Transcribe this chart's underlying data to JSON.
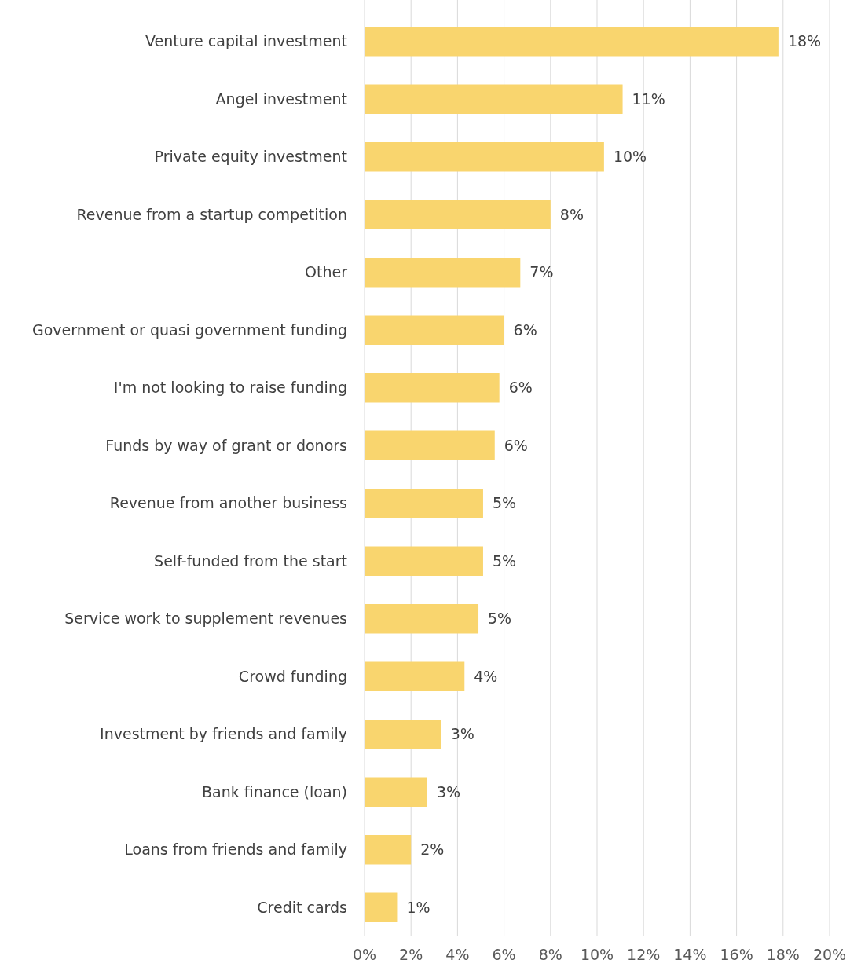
{
  "chart_data": {
    "type": "bar",
    "orientation": "horizontal",
    "categories": [
      "Venture capital investment",
      "Angel investment",
      "Private equity investment",
      "Revenue from a startup competition",
      "Other",
      "Government or quasi government funding",
      "I'm not looking to raise funding",
      "Funds by way of grant or donors",
      "Revenue from another business",
      "Self-funded from the start",
      "Service work to supplement revenues",
      "Crowd funding",
      "Investment by friends and family",
      "Bank finance (loan)",
      "Loans from friends and family",
      "Credit cards"
    ],
    "values": [
      17.8,
      11.1,
      10.3,
      8.0,
      6.7,
      6.0,
      5.8,
      5.6,
      5.1,
      5.1,
      4.9,
      4.3,
      3.3,
      2.7,
      2.0,
      1.4
    ],
    "value_labels": [
      "18%",
      "11%",
      "10%",
      "8%",
      "7%",
      "6%",
      "6%",
      "6%",
      "5%",
      "5%",
      "5%",
      "4%",
      "3%",
      "3%",
      "2%",
      "1%"
    ],
    "color": "#f9d56e",
    "xlim": [
      0,
      20
    ],
    "xticks": [
      {
        "value": 0,
        "label": "0%"
      },
      {
        "value": 2,
        "label": "2%"
      },
      {
        "value": 4,
        "label": "4%"
      },
      {
        "value": 6,
        "label": "6%"
      },
      {
        "value": 8,
        "label": "8%"
      },
      {
        "value": 10,
        "label": "10%"
      },
      {
        "value": 12,
        "label": "12%"
      },
      {
        "value": 14,
        "label": "14%"
      },
      {
        "value": 16,
        "label": "16%"
      },
      {
        "value": 18,
        "label": "18%"
      },
      {
        "value": 20,
        "label": "20%"
      }
    ],
    "grid": "x"
  }
}
